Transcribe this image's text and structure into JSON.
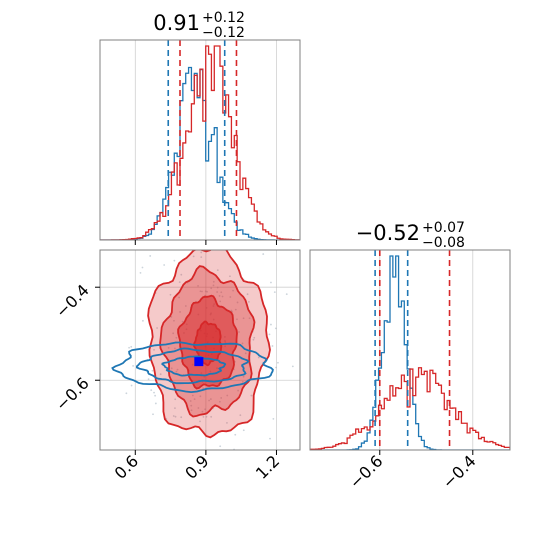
{
  "colors": {
    "blue": "#1f77b4",
    "red": "#d62728",
    "marker": "#0000ff",
    "grid": "#b0b0b0"
  },
  "chart_data": {
    "type": "corner",
    "parameters": 2,
    "grid": true,
    "panels": [
      {
        "id": "p1-hist",
        "type": "histogram",
        "title": {
          "value": "0.91",
          "plus": "+0.12",
          "minus": "−0.12"
        },
        "xlim": [
          0.45,
          1.3
        ],
        "xticks": [
          0.6,
          0.9,
          1.2
        ],
        "blue_quantiles": [
          0.74,
          0.98
        ],
        "red_quantiles": [
          0.79,
          1.03
        ],
        "series": [
          {
            "name": "",
            "color": "blue",
            "mean": 0.86,
            "sd": 0.08,
            "peak": 0.8
          },
          {
            "name": "",
            "color": "red",
            "mean": 0.91,
            "sd": 0.1,
            "peak": 0.9
          }
        ]
      },
      {
        "id": "p2-hist",
        "type": "histogram",
        "title": {
          "value": "−0.52",
          "plus": "+0.07",
          "minus": "−0.08"
        },
        "xlim": [
          -0.75,
          -0.32
        ],
        "xticks": [
          -0.6,
          -0.4
        ],
        "xtick_labels": [
          "−0.6",
          "−0.4"
        ],
        "blue_quantiles": [
          -0.61,
          -0.54
        ],
        "red_quantiles": [
          -0.6,
          -0.45
        ],
        "series": [
          {
            "name": "",
            "color": "blue",
            "mean": -0.57,
            "sd": 0.025,
            "peak": 0.88
          },
          {
            "name": "",
            "color": "red",
            "mean": -0.52,
            "sd": 0.075,
            "peak": 0.35
          }
        ]
      },
      {
        "id": "p12-contour",
        "type": "contour",
        "xlim": [
          0.45,
          1.3
        ],
        "ylim": [
          -0.75,
          -0.32
        ],
        "xticks": [
          0.6,
          0.9,
          1.2
        ],
        "yticks": [
          -0.4,
          -0.6
        ],
        "ytick_labels": [
          "−0.4",
          "−0.6"
        ],
        "marker": {
          "x": 0.87,
          "y": -0.56
        },
        "series": [
          {
            "name": "",
            "color": "red",
            "center": [
              0.91,
              -0.52
            ],
            "sd": [
              0.1,
              0.08
            ],
            "filled": true
          },
          {
            "name": "",
            "color": "blue",
            "center": [
              0.85,
              -0.57
            ],
            "sd": [
              0.14,
              0.022
            ],
            "filled": false
          }
        ]
      }
    ]
  }
}
